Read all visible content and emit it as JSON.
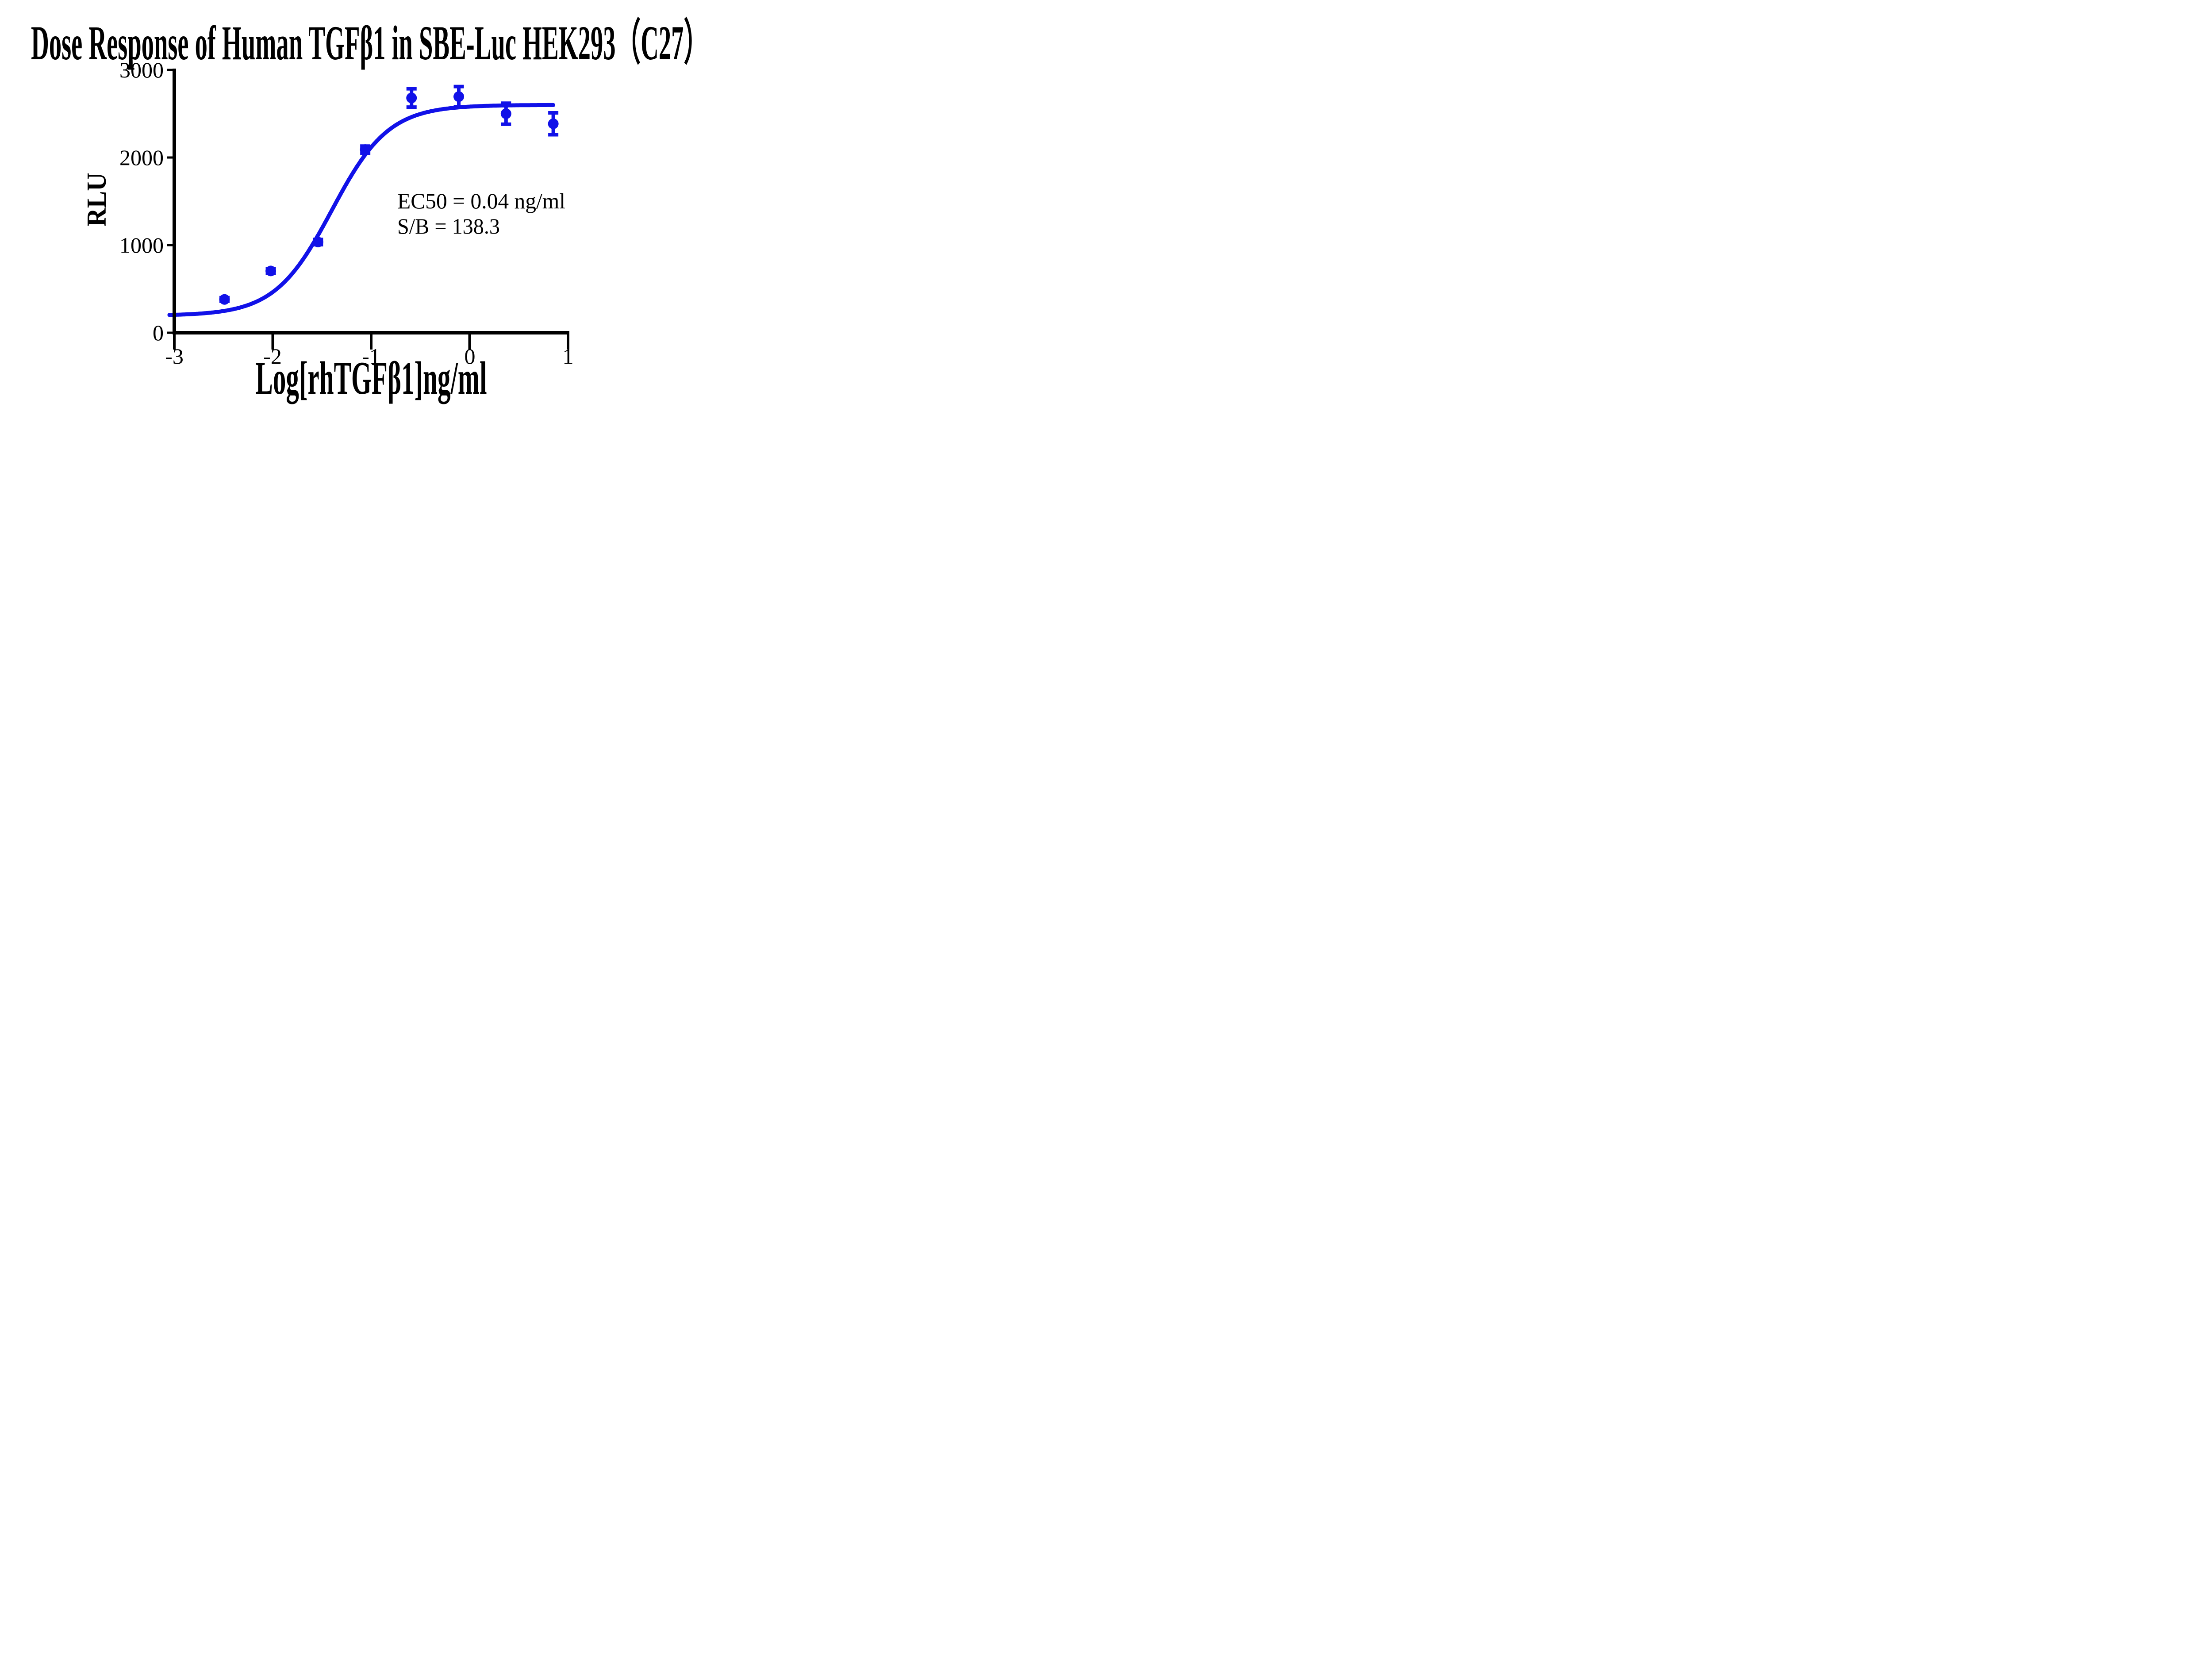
{
  "chart_data": {
    "type": "scatter",
    "title": "Dose Response of Human TGFβ1 in SBE-Luc HEK293（C27）",
    "xlabel": "Log[rhTGFβ1]ng/ml",
    "ylabel": "RLU",
    "x_tick_labels": [
      "-3",
      "-2",
      "-1",
      "0",
      "1"
    ],
    "y_tick_labels": [
      "3000",
      "2000",
      "1000",
      "0"
    ],
    "x_ticks": [
      -3,
      -2,
      -1,
      0,
      1
    ],
    "y_ticks": [
      0,
      1000,
      2000,
      3000
    ],
    "xlim": [
      -3,
      1
    ],
    "ylim": [
      0,
      3000
    ],
    "grid": false,
    "legend": "none",
    "series": [
      {
        "name": "rhTGFβ1",
        "marker": "circle",
        "points": [
          {
            "x": -2.49,
            "y": 380,
            "sd": 20
          },
          {
            "x": -2.02,
            "y": 705,
            "sd": 25
          },
          {
            "x": -1.54,
            "y": 1035,
            "sd": 30
          },
          {
            "x": -1.06,
            "y": 2090,
            "sd": 40
          },
          {
            "x": -0.59,
            "y": 2680,
            "sd": 105
          },
          {
            "x": -0.11,
            "y": 2695,
            "sd": 115
          },
          {
            "x": 0.37,
            "y": 2500,
            "sd": 120
          },
          {
            "x": 0.85,
            "y": 2385,
            "sd": 125
          }
        ]
      }
    ],
    "fit_curve": {
      "model": "four-parameter-logistic",
      "bottom": 195,
      "top": 2600,
      "logEC50": -1.4,
      "hillslope": 1.5,
      "x_start": -3.05,
      "x_end": 0.85
    },
    "annotations": {
      "ec50": "EC50 = 0.04 ng/ml",
      "sb": "S/B = 138.3"
    },
    "colors": {
      "series": "#1111e8",
      "axis": "#000000",
      "background": "#ffffff",
      "text": "#000000"
    }
  }
}
